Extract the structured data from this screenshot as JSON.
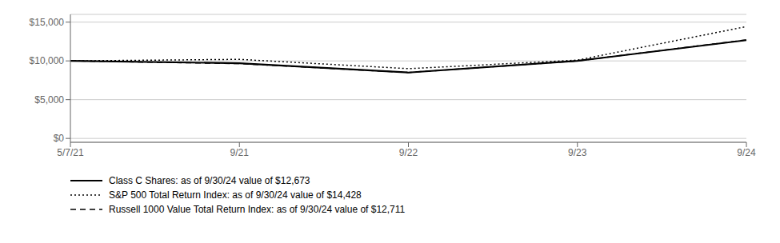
{
  "chart_data": {
    "type": "line",
    "categories": [
      "5/7/21",
      "9/21",
      "9/22",
      "9/23",
      "9/24"
    ],
    "series": [
      {
        "name": "Class C Shares: as of 9/30/24 value of $12,673",
        "color": "#000000",
        "line_style": "solid",
        "values": [
          10000,
          9700,
          8500,
          10000,
          12673
        ]
      },
      {
        "name": "S&P 500 Total Return Index: as of 9/30/24 value of $14,428",
        "color": "#000000",
        "line_style": "dotted",
        "values": [
          10000,
          10200,
          9000,
          10100,
          14428
        ]
      },
      {
        "name": "Russell 1000 Value Total Return Index: as of 9/30/24 value of $12,711",
        "color": "#000000",
        "line_style": "dashed",
        "values": [
          10000,
          9650,
          8500,
          10000,
          12711
        ]
      }
    ],
    "ylim": [
      -500,
      16000
    ],
    "yticks": [
      {
        "value": 0,
        "label": "$0"
      },
      {
        "value": 5000,
        "label": "$5,000"
      },
      {
        "value": 10000,
        "label": "$10,000"
      },
      {
        "value": 15000,
        "label": "$15,000"
      }
    ],
    "grid": true,
    "legend": "bottom"
  }
}
